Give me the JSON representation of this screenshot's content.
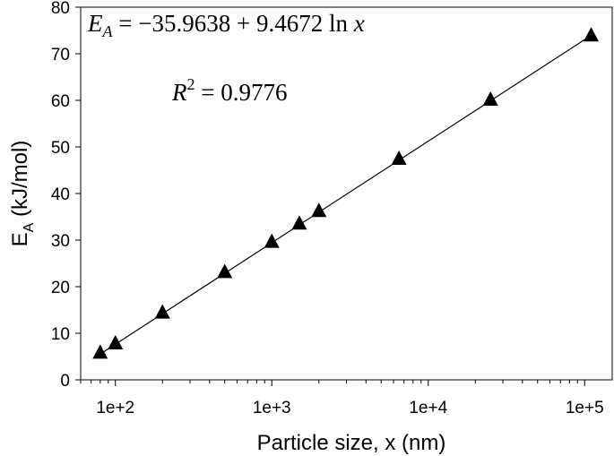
{
  "chart_data": {
    "type": "scatter",
    "xscale": "log",
    "xlim": [
      60,
      150000
    ],
    "ylim": [
      0,
      80
    ],
    "xticks": [
      100,
      1000,
      10000,
      100000
    ],
    "xtick_labels": [
      "1e+2",
      "1e+3",
      "1e+4",
      "1e+5"
    ],
    "yticks": [
      0,
      10,
      20,
      30,
      40,
      50,
      60,
      70,
      80
    ],
    "ytick_labels": [
      "0",
      "10",
      "20",
      "30",
      "40",
      "50",
      "60",
      "70",
      "80"
    ],
    "xlabel": "Particle size, x (nm)",
    "ylabel": {
      "main": "E",
      "sub": "A",
      "rest": " (kJ/mol)"
    },
    "grid": false,
    "marker": "triangle",
    "series": [
      {
        "x": [
          80,
          100,
          200,
          500,
          1000,
          1500,
          2000,
          6500,
          25000,
          110000
        ],
        "y": [
          5.8,
          7.8,
          14.4,
          23.1,
          29.6,
          33.5,
          36.2,
          47.4,
          60.1,
          73.9
        ]
      }
    ],
    "fit": {
      "intercept": -35.9638,
      "slope": 9.4672,
      "x_range": [
        80,
        110000
      ]
    },
    "annotations": {
      "equation": {
        "lhs_main": "E",
        "lhs_sub": "A",
        "eq": " = ",
        "rhs": "−35.9638 + 9.4672 ln ",
        "var": "x"
      },
      "r2": {
        "main": "R",
        "sup": "2",
        "rhs": " = 0.9776"
      }
    }
  }
}
